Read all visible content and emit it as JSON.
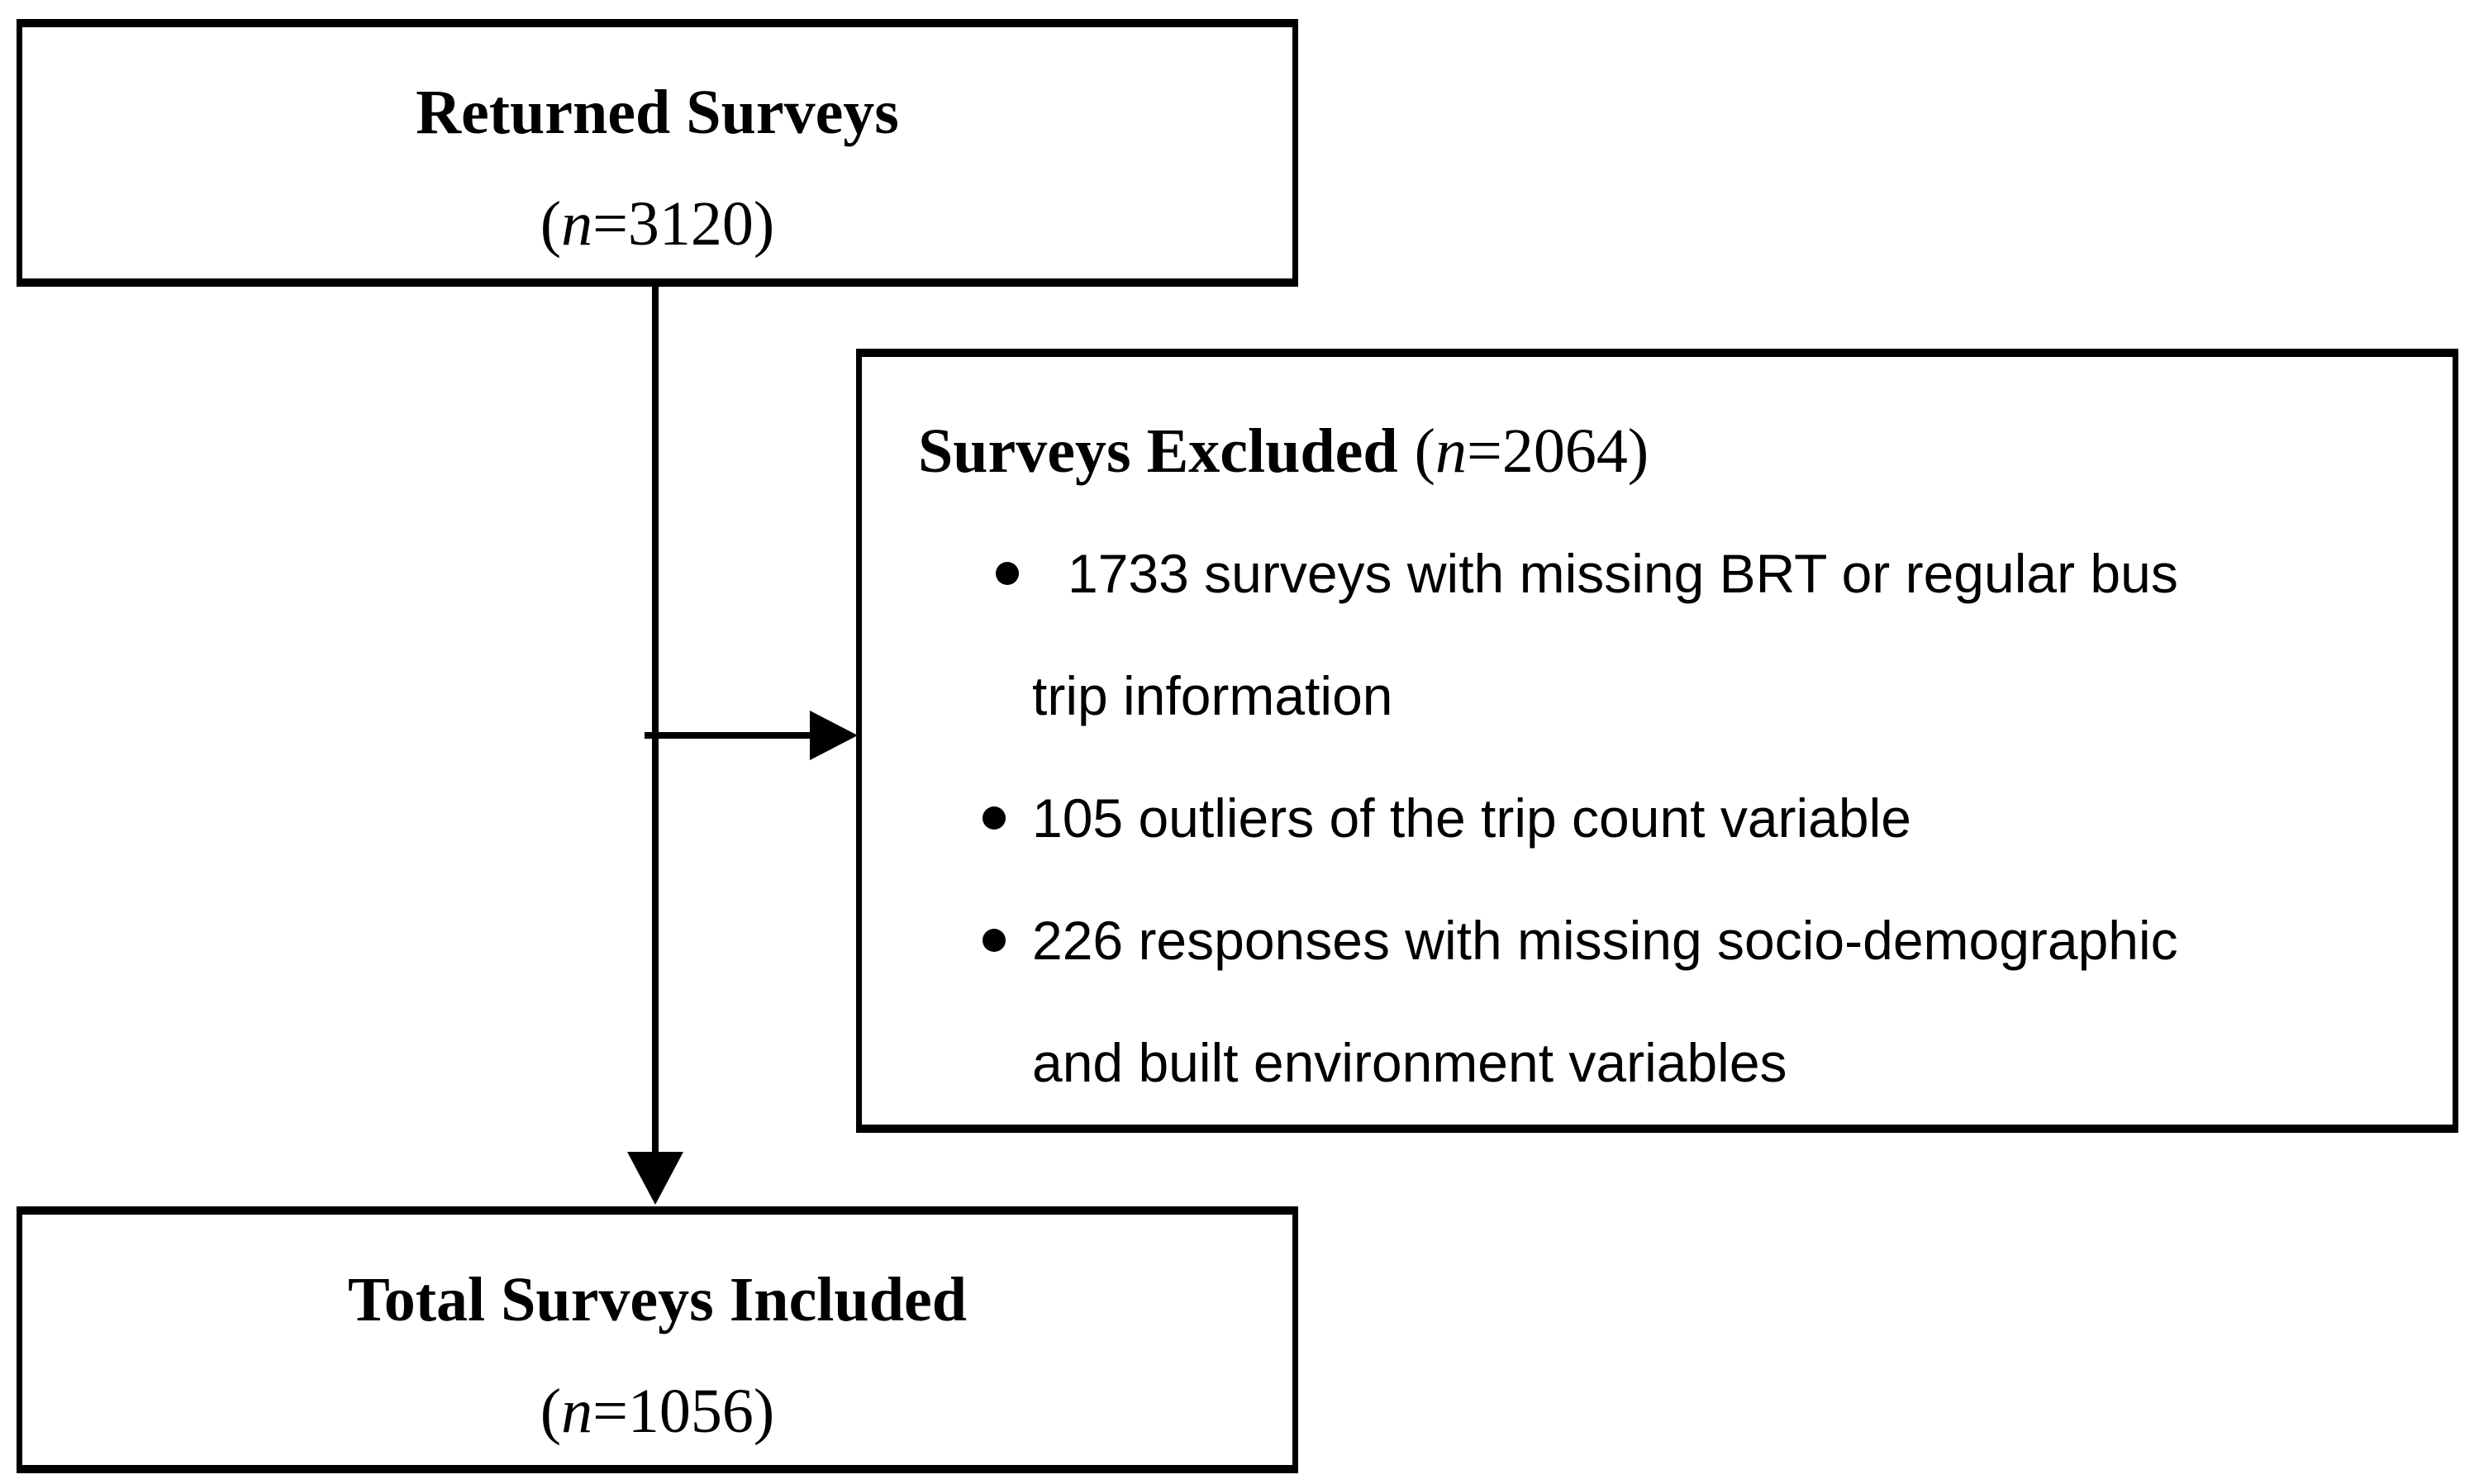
{
  "colors": {
    "foreground": "#000000",
    "background": "#ffffff"
  },
  "icons": {
    "bullet": "filled-circle",
    "arrow_down": "triangle-down",
    "arrow_right": "triangle-right"
  },
  "diagram": {
    "returned": {
      "title": "Returned Surveys",
      "count": {
        "pre": "(",
        "var": "n",
        "post": "=3120)"
      }
    },
    "excluded": {
      "title": "Surveys Excluded",
      "count": {
        "pre": "(",
        "var": "n",
        "post": "=2064)"
      },
      "bullets": [
        {
          "lines": [
            "1733 surveys with missing BRT or regular bus",
            "trip information"
          ]
        },
        {
          "lines": [
            "105 outliers of the trip count variable"
          ]
        },
        {
          "lines": [
            "226 responses with missing socio-demographic",
            "and built environment variables"
          ]
        }
      ]
    },
    "total": {
      "title": "Total Surveys Included",
      "count": {
        "pre": "(",
        "var": "n",
        "post": "=1056)"
      }
    }
  }
}
